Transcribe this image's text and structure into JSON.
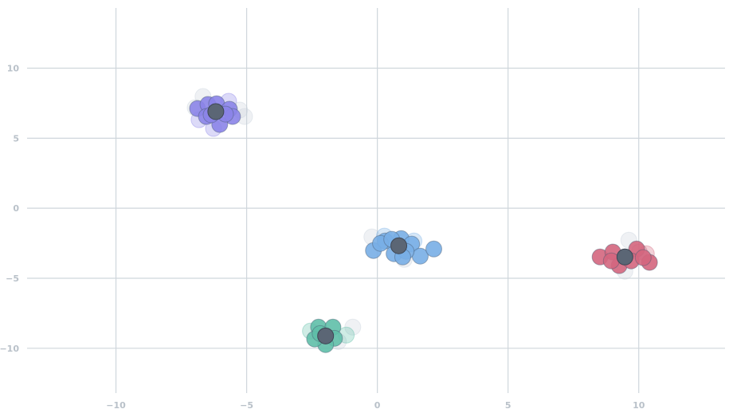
{
  "chart_data": {
    "type": "scatter",
    "title": "",
    "xlabel": "",
    "ylabel": "",
    "xlim": [
      -13.4,
      13.3
    ],
    "ylim": [
      -13.2,
      14.3
    ],
    "grid": true,
    "x_ticks": [
      -10,
      -5,
      0,
      5,
      10
    ],
    "y_ticks": [
      10,
      5,
      0,
      -5,
      -10
    ],
    "x_tick_labels": [
      "−10",
      "−5",
      "0",
      "5",
      "10"
    ],
    "y_tick_labels": [
      "10",
      "5",
      "0",
      "−5",
      "−10"
    ],
    "centroid_color": "#5b6675",
    "ghost_color": "#c9d1db",
    "clusters": [
      {
        "color": "#8b84e8",
        "centroid": [
          -6.18,
          6.9
        ],
        "points": [
          [
            -6.88,
            7.12
          ],
          [
            -6.48,
            7.41
          ],
          [
            -6.15,
            7.46
          ],
          [
            -5.66,
            7.07
          ],
          [
            -5.54,
            6.55
          ],
          [
            -6.03,
            5.98
          ],
          [
            -6.54,
            6.55
          ],
          [
            -5.81,
            6.72
          ],
          [
            -6.36,
            6.67
          ]
        ],
        "faded_points": [
          [
            -6.67,
            7.98
          ],
          [
            -5.69,
            7.64
          ],
          [
            -5.08,
            6.55
          ],
          [
            -6.27,
            5.7
          ],
          [
            -5.27,
            7.01
          ],
          [
            -6.82,
            6.32
          ],
          [
            -6.97,
            7.18
          ]
        ]
      },
      {
        "color": "#78aee6",
        "centroid": [
          0.82,
          -2.68
        ],
        "points": [
          [
            -0.15,
            -3.02
          ],
          [
            0.3,
            -2.34
          ],
          [
            0.91,
            -2.17
          ],
          [
            1.31,
            -2.56
          ],
          [
            1.64,
            -3.42
          ],
          [
            2.16,
            -2.91
          ],
          [
            0.64,
            -3.25
          ],
          [
            1.1,
            -3.08
          ],
          [
            0.12,
            -2.51
          ],
          [
            0.55,
            -2.22
          ],
          [
            0.97,
            -3.48
          ]
        ],
        "faded_points": [
          [
            -0.21,
            -2.05
          ],
          [
            0.27,
            -1.99
          ],
          [
            1.03,
            -3.65
          ],
          [
            1.4,
            -2.34
          ]
        ]
      },
      {
        "color": "#d4667e",
        "centroid": [
          9.47,
          -3.48
        ],
        "points": [
          [
            8.52,
            -3.48
          ],
          [
            9.01,
            -3.13
          ],
          [
            9.92,
            -2.91
          ],
          [
            10.41,
            -3.87
          ],
          [
            9.25,
            -4.1
          ],
          [
            9.71,
            -3.76
          ],
          [
            8.95,
            -3.76
          ],
          [
            10.17,
            -3.53
          ]
        ],
        "faded_points": [
          [
            9.62,
            -2.28
          ],
          [
            10.02,
            -3.13
          ],
          [
            9.47,
            -4.5
          ],
          [
            10.29,
            -3.25
          ]
        ]
      },
      {
        "color": "#5fbfa8",
        "centroid": [
          -1.98,
          -9.12
        ],
        "points": [
          [
            -2.25,
            -8.49
          ],
          [
            -1.7,
            -8.49
          ],
          [
            -1.64,
            -9.29
          ],
          [
            -1.98,
            -9.74
          ],
          [
            -2.4,
            -9.34
          ],
          [
            -2.19,
            -8.95
          ]
        ],
        "faded_points": [
          [
            -0.94,
            -8.49
          ],
          [
            -2.56,
            -8.77
          ],
          [
            -1.49,
            -9.52
          ],
          [
            -1.19,
            -9.06
          ]
        ]
      }
    ]
  }
}
